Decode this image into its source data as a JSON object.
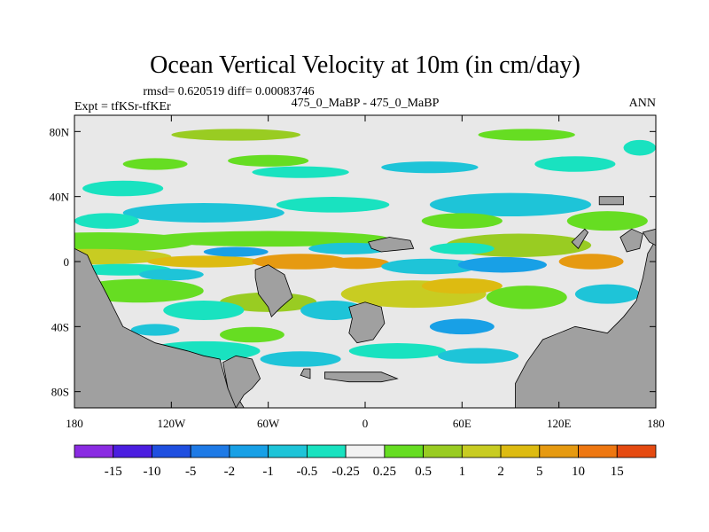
{
  "chart_data": {
    "type": "heatmap",
    "title": "Ocean Vertical Velocity at 10m (in cm/day)",
    "stats_line": "rmsd= 0.620519 diff= 0.00083746",
    "left_label": "Expt = tfKSr-tfKEr",
    "center_label": "475_0_MaBP - 475_0_MaBP",
    "right_label": "ANN",
    "x_ticks": [
      {
        "lon": -180,
        "label": "180"
      },
      {
        "lon": -120,
        "label": "120W"
      },
      {
        "lon": -60,
        "label": "60W"
      },
      {
        "lon": 0,
        "label": "0"
      },
      {
        "lon": 60,
        "label": "60E"
      },
      {
        "lon": 120,
        "label": "120E"
      },
      {
        "lon": 180,
        "label": "180"
      }
    ],
    "y_ticks": [
      {
        "lat": 80,
        "label": "80N"
      },
      {
        "lat": 40,
        "label": "40N"
      },
      {
        "lat": 0,
        "label": "0"
      },
      {
        "lat": -40,
        "label": "40S"
      },
      {
        "lat": -80,
        "label": "80S"
      }
    ],
    "xlim": [
      -180,
      180
    ],
    "ylim": [
      -90,
      90
    ],
    "colorbar": {
      "colors": [
        "#8a2be2",
        "#4b1ee0",
        "#1f4fe0",
        "#1e7ae6",
        "#18a0e6",
        "#1ec4d8",
        "#19e2c0",
        "#f2f2f2",
        "#66dd22",
        "#99cc22",
        "#c8cc22",
        "#ddbb11",
        "#e69a11",
        "#ee7711",
        "#e54a11"
      ],
      "labels": [
        "-15",
        "-10",
        "-5",
        "-2",
        "-1",
        "-0.5",
        "-0.25",
        "0.25",
        "0.5",
        "1",
        "2",
        "5",
        "10",
        "15"
      ]
    },
    "land_color": "#a0a0a0",
    "near_zero_color": "#e8e8e8"
  }
}
